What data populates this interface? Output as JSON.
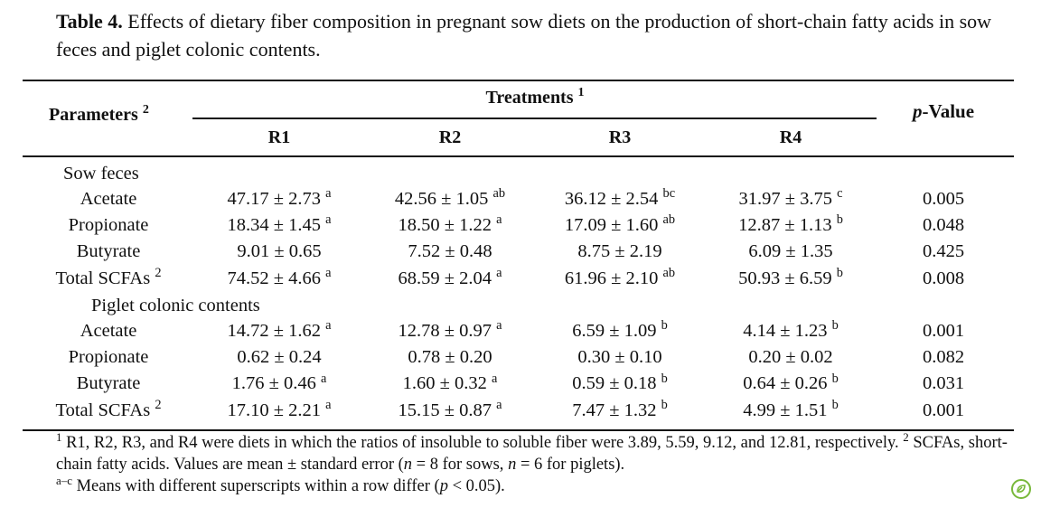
{
  "caption": {
    "label": "Table 4.",
    "text": "Effects of dietary fiber composition in pregnant sow diets on the production of short-chain fatty acids in sow feces and piglet colonic contents."
  },
  "header": {
    "parameters": "Parameters",
    "parameters_sup": "2",
    "treatments": "Treatments",
    "treatments_sup": "1",
    "pvalue_italic": "p",
    "pvalue_rest": "-Value",
    "columns": [
      "R1",
      "R2",
      "R3",
      "R4"
    ]
  },
  "groups": [
    {
      "title": "Sow feces",
      "rows": [
        {
          "param": "Acetate",
          "param_sup": "",
          "values": [
            [
              "47.17 ± 2.73",
              "a"
            ],
            [
              "42.56 ± 1.05",
              "ab"
            ],
            [
              "36.12 ± 2.54",
              "bc"
            ],
            [
              "31.97 ± 3.75",
              "c"
            ]
          ],
          "p": "0.005"
        },
        {
          "param": "Propionate",
          "param_sup": "",
          "values": [
            [
              "18.34 ± 1.45",
              "a"
            ],
            [
              "18.50 ± 1.22",
              "a"
            ],
            [
              "17.09 ± 1.60",
              "ab"
            ],
            [
              "12.87 ± 1.13",
              "b"
            ]
          ],
          "p": "0.048"
        },
        {
          "param": "Butyrate",
          "param_sup": "",
          "values": [
            [
              "9.01 ± 0.65",
              ""
            ],
            [
              "7.52 ± 0.48",
              ""
            ],
            [
              "8.75 ± 2.19",
              ""
            ],
            [
              "6.09 ± 1.35",
              ""
            ]
          ],
          "p": "0.425"
        },
        {
          "param": "Total SCFAs",
          "param_sup": "2",
          "values": [
            [
              "74.52 ± 4.66",
              "a"
            ],
            [
              "68.59 ± 2.04",
              "a"
            ],
            [
              "61.96 ± 2.10",
              "ab"
            ],
            [
              "50.93 ± 6.59",
              "b"
            ]
          ],
          "p": "0.008"
        }
      ]
    },
    {
      "title": "Piglet colonic contents",
      "rows": [
        {
          "param": "Acetate",
          "param_sup": "",
          "values": [
            [
              "14.72 ± 1.62",
              "a"
            ],
            [
              "12.78 ± 0.97",
              "a"
            ],
            [
              "6.59 ± 1.09",
              "b"
            ],
            [
              "4.14 ± 1.23",
              "b"
            ]
          ],
          "p": "0.001"
        },
        {
          "param": "Propionate",
          "param_sup": "",
          "values": [
            [
              "0.62 ± 0.24",
              ""
            ],
            [
              "0.78 ± 0.20",
              ""
            ],
            [
              "0.30 ± 0.10",
              ""
            ],
            [
              "0.20 ± 0.02",
              ""
            ]
          ],
          "p": "0.082"
        },
        {
          "param": "Butyrate",
          "param_sup": "",
          "values": [
            [
              "1.76 ± 0.46",
              "a"
            ],
            [
              "1.60 ± 0.32",
              "a"
            ],
            [
              "0.59 ± 0.18",
              "b"
            ],
            [
              "0.64 ± 0.26",
              "b"
            ]
          ],
          "p": "0.031"
        },
        {
          "param": "Total SCFAs",
          "param_sup": "2",
          "values": [
            [
              "17.10 ± 2.21",
              "a"
            ],
            [
              "15.15 ± 0.87",
              "a"
            ],
            [
              "7.47 ± 1.32",
              "b"
            ],
            [
              "4.99 ± 1.51",
              "b"
            ]
          ],
          "p": "0.001"
        }
      ]
    }
  ],
  "footnote": {
    "line1_sup": "1",
    "line1": " R1, R2, R3, and R4 were diets in which the ratios of insoluble to soluble fiber were 3.89, 5.59, 9.12, and 12.81, respectively.",
    "line2_sup": "2",
    "line2a": " SCFAs, short-chain fatty acids. Values are mean ± standard error (",
    "n1": "n",
    "line2b": " = 8 for sows, ",
    "n2": "n",
    "line2c": " = 6 for piglets).",
    "line3_sup": "a–c",
    "line3a": " Means with different superscripts within a row differ (",
    "p": "p",
    "line3b": " < 0.05)."
  },
  "badge_icon": "leaf-check-icon"
}
